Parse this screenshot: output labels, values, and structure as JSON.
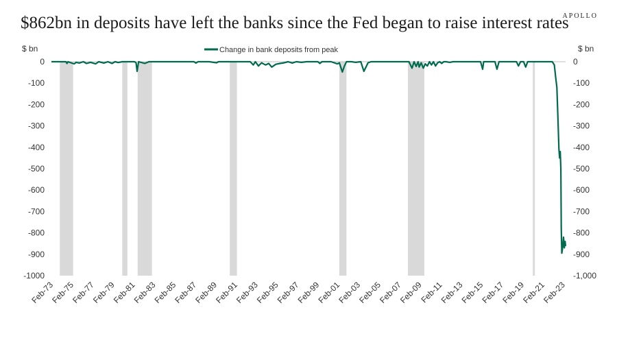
{
  "header": {
    "title": "$862bn in deposits have left the banks since the Fed began to raise interest rates",
    "brand": "APOLLO"
  },
  "chart_data": {
    "type": "line",
    "ylabel_left": "$ bn",
    "ylabel_right": "$ bn",
    "ylim": [
      -1000,
      0
    ],
    "yticks_left": [
      "0",
      "-100",
      "-200",
      "-300",
      "-400",
      "-500",
      "-600",
      "-700",
      "-800",
      "-900",
      "-1000"
    ],
    "yticks_right": [
      "0",
      "-100",
      "-200",
      "-300",
      "-400",
      "-500",
      "-600",
      "-700",
      "-800",
      "-900",
      "-1,000"
    ],
    "ytick_values": [
      0,
      -100,
      -200,
      -300,
      -400,
      -500,
      -600,
      -700,
      -800,
      -900,
      -1000
    ],
    "xlim": [
      1973.08,
      2023.3
    ],
    "xticks": [
      {
        "label": "Feb-73",
        "value": 1973.08
      },
      {
        "label": "Feb-75",
        "value": 1975.08
      },
      {
        "label": "Feb-77",
        "value": 1977.08
      },
      {
        "label": "Feb-79",
        "value": 1979.08
      },
      {
        "label": "Feb-81",
        "value": 1981.08
      },
      {
        "label": "Feb-83",
        "value": 1983.08
      },
      {
        "label": "Feb-85",
        "value": 1985.08
      },
      {
        "label": "Feb-87",
        "value": 1987.08
      },
      {
        "label": "Feb-89",
        "value": 1989.08
      },
      {
        "label": "Feb-91",
        "value": 1991.08
      },
      {
        "label": "Feb-93",
        "value": 1993.08
      },
      {
        "label": "Feb-95",
        "value": 1995.08
      },
      {
        "label": "Feb-97",
        "value": 1997.08
      },
      {
        "label": "Feb-99",
        "value": 1999.08
      },
      {
        "label": "Feb-01",
        "value": 2001.08
      },
      {
        "label": "Feb-03",
        "value": 2003.08
      },
      {
        "label": "Feb-05",
        "value": 2005.08
      },
      {
        "label": "Feb-07",
        "value": 2007.08
      },
      {
        "label": "Feb-09",
        "value": 2009.08
      },
      {
        "label": "Feb-11",
        "value": 2011.08
      },
      {
        "label": "Feb-13",
        "value": 2013.08
      },
      {
        "label": "Feb-15",
        "value": 2015.08
      },
      {
        "label": "Feb-17",
        "value": 2017.08
      },
      {
        "label": "Feb-19",
        "value": 2019.08
      },
      {
        "label": "Feb-21",
        "value": 2021.08
      },
      {
        "label": "Feb-23",
        "value": 2023.08
      }
    ],
    "recessions": [
      [
        1973.9,
        1975.2
      ],
      [
        1980.0,
        1980.5
      ],
      [
        1981.5,
        1982.9
      ],
      [
        1990.5,
        1991.2
      ],
      [
        2001.2,
        2001.9
      ],
      [
        2007.9,
        2009.5
      ],
      [
        2020.1,
        2020.3
      ]
    ],
    "series": [
      {
        "name": "Change in bank deposits from peak",
        "color": "#006a4e",
        "x": [
          1973.08,
          1974.5,
          1974.6,
          1974.7,
          1975.0,
          1975.3,
          1975.5,
          1975.8,
          1976.2,
          1976.5,
          1976.9,
          1977.4,
          1977.7,
          1978.2,
          1978.6,
          1979.0,
          1979.3,
          1979.6,
          1980.0,
          1981.2,
          1981.35,
          1981.45,
          1981.6,
          1982.2,
          1982.6,
          1985.0,
          1987.0,
          1987.2,
          1987.4,
          1988.5,
          1989.2,
          1989.4,
          1991.0,
          1992.5,
          1992.8,
          1993.0,
          1993.3,
          1993.6,
          1994.0,
          1994.3,
          1994.6,
          1995.0,
          1995.4,
          1995.8,
          1996.2,
          1996.6,
          1997.0,
          1997.5,
          1998.0,
          1998.5,
          1999.1,
          1999.3,
          1999.5,
          2000.4,
          2001.0,
          2001.2,
          2001.5,
          2001.7,
          2001.9,
          2002.4,
          2002.8,
          2003.3,
          2003.6,
          2004.0,
          2004.3,
          2008.0,
          2008.3,
          2008.5,
          2008.7,
          2008.9,
          2009.0,
          2009.2,
          2009.4,
          2009.6,
          2009.8,
          2010.0,
          2010.2,
          2010.4,
          2010.6,
          2010.8,
          2011.0,
          2011.2,
          2011.4,
          2011.6,
          2012.0,
          2012.3,
          2012.6,
          2015.0,
          2015.2,
          2015.3,
          2016.4,
          2016.6,
          2016.8,
          2018.5,
          2018.7,
          2018.9,
          2019.2,
          2019.4,
          2019.6,
          2022.0,
          2022.2,
          2022.35,
          2022.45,
          2022.55,
          2022.65,
          2022.72,
          2022.78,
          2022.84,
          2022.88,
          2022.93,
          2022.98,
          2023.03,
          2023.1,
          2023.18,
          2023.25,
          2023.3
        ],
        "values": [
          0,
          0,
          -8,
          0,
          -5,
          -10,
          -3,
          -6,
          0,
          -8,
          -3,
          -10,
          0,
          -6,
          0,
          -8,
          0,
          -4,
          0,
          0,
          -5,
          -45,
          0,
          -8,
          0,
          0,
          0,
          -6,
          0,
          0,
          -5,
          0,
          0,
          0,
          -15,
          0,
          -20,
          -5,
          -15,
          -8,
          -25,
          -12,
          -8,
          -5,
          0,
          -6,
          0,
          -3,
          0,
          0,
          0,
          -8,
          0,
          0,
          -10,
          -5,
          -48,
          -20,
          0,
          0,
          -3,
          0,
          -45,
          -5,
          0,
          0,
          -30,
          0,
          -22,
          0,
          -25,
          -5,
          -30,
          -10,
          -20,
          0,
          -15,
          0,
          -20,
          -5,
          0,
          -8,
          0,
          0,
          -3,
          0,
          0,
          0,
          -35,
          0,
          0,
          -35,
          0,
          0,
          -20,
          0,
          0,
          -25,
          0,
          0,
          -15,
          -80,
          -120,
          -260,
          -410,
          -450,
          -420,
          -500,
          -780,
          -895,
          -880,
          -860,
          -820,
          -870,
          -840,
          -862
        ]
      }
    ]
  }
}
